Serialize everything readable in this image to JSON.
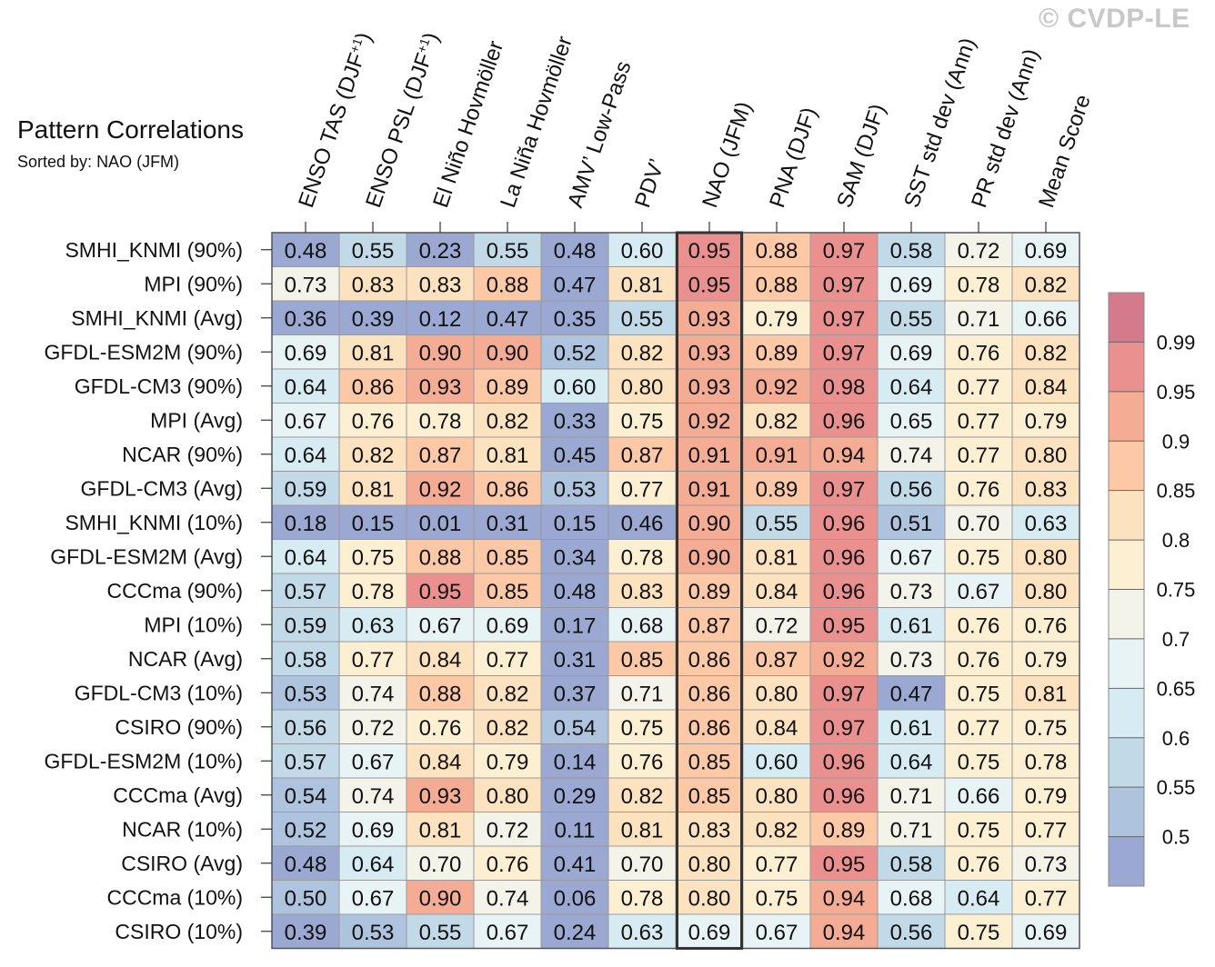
{
  "watermark": "© CVDP-LE",
  "title": "Pattern Correlations",
  "subtitle_prefix": "Sorted by:",
  "subtitle_value": "NAO (JFM)",
  "chart_data": {
    "type": "heatmap",
    "title": "Pattern Correlations",
    "sorted_by": "NAO (JFM)",
    "columns": [
      {
        "base": "ENSO TAS (DJF",
        "sup": "+1",
        "tail": ")"
      },
      {
        "base": "ENSO PSL (DJF",
        "sup": "+1",
        "tail": ")"
      },
      {
        "base": "El Niño Hovmöller",
        "sup": "",
        "tail": ""
      },
      {
        "base": "La Niña Hovmöller",
        "sup": "",
        "tail": ""
      },
      {
        "base": "AMV’ Low-Pass",
        "sup": "",
        "tail": ""
      },
      {
        "base": "PDV’",
        "sup": "",
        "tail": ""
      },
      {
        "base": "NAO (JFM)",
        "sup": "",
        "tail": ""
      },
      {
        "base": "PNA (DJF)",
        "sup": "",
        "tail": ""
      },
      {
        "base": "SAM (DJF)",
        "sup": "",
        "tail": ""
      },
      {
        "base": "SST std dev (Ann)",
        "sup": "",
        "tail": ""
      },
      {
        "base": "PR std dev (Ann)",
        "sup": "",
        "tail": ""
      },
      {
        "base": "Mean Score",
        "sup": "",
        "tail": ""
      }
    ],
    "highlighted_column": 6,
    "rows": [
      {
        "name": "SMHI_KNMI (90%)",
        "values": [
          0.48,
          0.55,
          0.23,
          0.55,
          0.48,
          0.6,
          0.95,
          0.88,
          0.97,
          0.58,
          0.72,
          0.69
        ]
      },
      {
        "name": "MPI (90%)",
        "values": [
          0.73,
          0.83,
          0.83,
          0.88,
          0.47,
          0.81,
          0.95,
          0.88,
          0.97,
          0.69,
          0.78,
          0.82
        ]
      },
      {
        "name": "SMHI_KNMI (Avg)",
        "values": [
          0.36,
          0.39,
          0.12,
          0.47,
          0.35,
          0.55,
          0.93,
          0.79,
          0.97,
          0.55,
          0.71,
          0.66
        ]
      },
      {
        "name": "GFDL-ESM2M (90%)",
        "values": [
          0.69,
          0.81,
          0.9,
          0.9,
          0.52,
          0.82,
          0.93,
          0.89,
          0.97,
          0.69,
          0.76,
          0.82
        ]
      },
      {
        "name": "GFDL-CM3 (90%)",
        "values": [
          0.64,
          0.86,
          0.93,
          0.89,
          0.6,
          0.8,
          0.93,
          0.92,
          0.98,
          0.64,
          0.77,
          0.84
        ]
      },
      {
        "name": "MPI (Avg)",
        "values": [
          0.67,
          0.76,
          0.78,
          0.82,
          0.33,
          0.75,
          0.92,
          0.82,
          0.96,
          0.65,
          0.77,
          0.79
        ]
      },
      {
        "name": "NCAR (90%)",
        "values": [
          0.64,
          0.82,
          0.87,
          0.81,
          0.45,
          0.87,
          0.91,
          0.91,
          0.94,
          0.74,
          0.77,
          0.8
        ]
      },
      {
        "name": "GFDL-CM3 (Avg)",
        "values": [
          0.59,
          0.81,
          0.92,
          0.86,
          0.53,
          0.77,
          0.91,
          0.89,
          0.97,
          0.56,
          0.76,
          0.83
        ]
      },
      {
        "name": "SMHI_KNMI (10%)",
        "values": [
          0.18,
          0.15,
          0.01,
          0.31,
          0.15,
          0.46,
          0.9,
          0.55,
          0.96,
          0.51,
          0.7,
          0.63
        ]
      },
      {
        "name": "GFDL-ESM2M (Avg)",
        "values": [
          0.64,
          0.75,
          0.88,
          0.85,
          0.34,
          0.78,
          0.9,
          0.81,
          0.96,
          0.67,
          0.75,
          0.8
        ]
      },
      {
        "name": "CCCma (90%)",
        "values": [
          0.57,
          0.78,
          0.95,
          0.85,
          0.48,
          0.83,
          0.89,
          0.84,
          0.96,
          0.73,
          0.67,
          0.8
        ]
      },
      {
        "name": "MPI (10%)",
        "values": [
          0.59,
          0.63,
          0.67,
          0.69,
          0.17,
          0.68,
          0.87,
          0.72,
          0.95,
          0.61,
          0.76,
          0.76
        ]
      },
      {
        "name": "NCAR (Avg)",
        "values": [
          0.58,
          0.77,
          0.84,
          0.77,
          0.31,
          0.85,
          0.86,
          0.87,
          0.92,
          0.73,
          0.76,
          0.79
        ]
      },
      {
        "name": "GFDL-CM3 (10%)",
        "values": [
          0.53,
          0.74,
          0.88,
          0.82,
          0.37,
          0.71,
          0.86,
          0.8,
          0.97,
          0.47,
          0.75,
          0.81
        ]
      },
      {
        "name": "CSIRO (90%)",
        "values": [
          0.56,
          0.72,
          0.76,
          0.82,
          0.54,
          0.75,
          0.86,
          0.84,
          0.97,
          0.61,
          0.77,
          0.75
        ]
      },
      {
        "name": "GFDL-ESM2M (10%)",
        "values": [
          0.57,
          0.67,
          0.84,
          0.79,
          0.14,
          0.76,
          0.85,
          0.6,
          0.96,
          0.64,
          0.75,
          0.78
        ]
      },
      {
        "name": "CCCma (Avg)",
        "values": [
          0.54,
          0.74,
          0.93,
          0.8,
          0.29,
          0.82,
          0.85,
          0.8,
          0.96,
          0.71,
          0.66,
          0.79
        ]
      },
      {
        "name": "NCAR (10%)",
        "values": [
          0.52,
          0.69,
          0.81,
          0.72,
          0.11,
          0.81,
          0.83,
          0.82,
          0.89,
          0.71,
          0.75,
          0.77
        ]
      },
      {
        "name": "CSIRO (Avg)",
        "values": [
          0.48,
          0.64,
          0.7,
          0.76,
          0.41,
          0.7,
          0.8,
          0.77,
          0.95,
          0.58,
          0.76,
          0.73
        ]
      },
      {
        "name": "CCCma (10%)",
        "values": [
          0.5,
          0.67,
          0.9,
          0.74,
          0.06,
          0.78,
          0.8,
          0.75,
          0.94,
          0.68,
          0.64,
          0.77
        ]
      },
      {
        "name": "CSIRO (10%)",
        "values": [
          0.39,
          0.53,
          0.55,
          0.67,
          0.24,
          0.63,
          0.69,
          0.67,
          0.94,
          0.56,
          0.75,
          0.69
        ]
      }
    ],
    "colorbar": {
      "levels": [
        0.5,
        0.55,
        0.6,
        0.65,
        0.7,
        0.75,
        0.8,
        0.85,
        0.9,
        0.95,
        0.99
      ],
      "labels": [
        "0.5",
        "0.55",
        "0.6",
        "0.65",
        "0.7",
        "0.75",
        "0.8",
        "0.85",
        "0.9",
        "0.95",
        "0.99"
      ],
      "colors": [
        "#9aa8d2",
        "#aec3de",
        "#c2d9e8",
        "#d6ebf2",
        "#e8f3f6",
        "#f3f3ea",
        "#fdf0d2",
        "#fde2bf",
        "#fcc8a6",
        "#f4ac95",
        "#ea9190",
        "#d57a8c"
      ]
    }
  }
}
